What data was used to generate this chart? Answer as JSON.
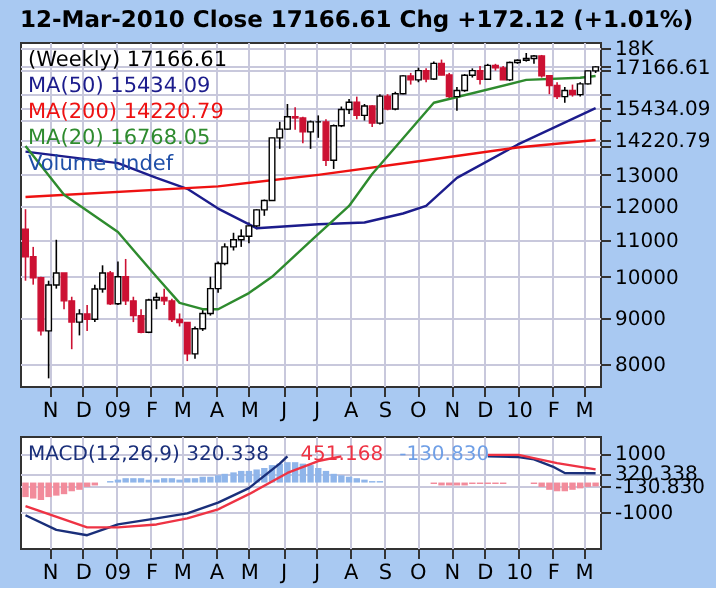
{
  "chart_data": [
    {
      "type": "candlestick",
      "title": "12-Mar-2010  Close 17166.61  Chg +172.12 (+1.01%)",
      "legend_title": "(Weekly) 17166.61",
      "x": [
        "2008-10-10",
        "2008-10-17",
        "2008-10-24",
        "2008-10-31",
        "2008-11-07",
        "2008-11-14",
        "2008-11-21",
        "2008-11-28",
        "2008-12-05",
        "2008-12-12",
        "2008-12-19",
        "2008-12-26",
        "2009-01-02",
        "2009-01-09",
        "2009-01-16",
        "2009-01-23",
        "2009-01-30",
        "2009-02-06",
        "2009-02-13",
        "2009-02-20",
        "2009-02-27",
        "2009-03-06",
        "2009-03-13",
        "2009-03-20",
        "2009-03-27",
        "2009-04-03",
        "2009-04-09",
        "2009-04-17",
        "2009-04-24",
        "2009-05-01",
        "2009-05-08",
        "2009-05-15",
        "2009-05-22",
        "2009-05-29",
        "2009-06-05",
        "2009-06-12",
        "2009-06-19",
        "2009-06-26",
        "2009-07-03",
        "2009-07-10",
        "2009-07-17",
        "2009-07-24",
        "2009-07-31",
        "2009-08-07",
        "2009-08-14",
        "2009-08-21",
        "2009-08-28",
        "2009-09-04",
        "2009-09-11",
        "2009-09-18",
        "2009-09-25",
        "2009-10-02",
        "2009-10-09",
        "2009-10-16",
        "2009-10-23",
        "2009-10-30",
        "2009-11-06",
        "2009-11-13",
        "2009-11-20",
        "2009-11-27",
        "2009-12-04",
        "2009-12-11",
        "2009-12-18",
        "2009-12-24",
        "2009-12-31",
        "2010-01-08",
        "2010-01-15",
        "2010-01-22",
        "2010-01-29",
        "2010-02-05",
        "2010-02-12",
        "2010-02-19",
        "2010-02-26",
        "2010-03-05",
        "2010-03-12"
      ],
      "ohlc": [
        [
          11300,
          11900,
          9900,
          10530
        ],
        [
          10530,
          10800,
          9800,
          9975
        ],
        [
          9975,
          10000,
          8600,
          8700
        ],
        [
          8700,
          9900,
          7700,
          9790
        ],
        [
          9790,
          11000,
          9700,
          10100
        ],
        [
          10100,
          10100,
          9200,
          9400
        ],
        [
          9400,
          9500,
          8300,
          8900
        ],
        [
          8900,
          9200,
          8600,
          9090
        ],
        [
          9090,
          9300,
          8700,
          8965
        ],
        [
          8965,
          9800,
          8900,
          9690
        ],
        [
          9690,
          10300,
          9600,
          10100
        ],
        [
          10100,
          10150,
          9300,
          9330
        ],
        [
          9330,
          10400,
          9300,
          10000
        ],
        [
          10000,
          10470,
          9300,
          9400
        ],
        [
          9400,
          9500,
          8900,
          9050
        ],
        [
          9050,
          9200,
          8650,
          8670
        ],
        [
          8670,
          9450,
          8650,
          9420
        ],
        [
          9420,
          9600,
          9200,
          9480
        ],
        [
          9480,
          9700,
          9300,
          9400
        ],
        [
          9400,
          9450,
          8900,
          8960
        ],
        [
          8960,
          9100,
          8800,
          8890
        ],
        [
          8890,
          8900,
          8050,
          8200
        ],
        [
          8200,
          8800,
          8100,
          8750
        ],
        [
          8750,
          9200,
          8700,
          9100
        ],
        [
          9100,
          10000,
          9050,
          9700
        ],
        [
          9700,
          10400,
          9600,
          10350
        ],
        [
          10350,
          10900,
          10300,
          10800
        ],
        [
          10800,
          11200,
          10700,
          11000
        ],
        [
          11000,
          11300,
          10800,
          11100
        ],
        [
          11100,
          11500,
          10900,
          11400
        ],
        [
          11400,
          11900,
          11300,
          11880
        ],
        [
          11880,
          12200,
          11700,
          12170
        ],
        [
          12170,
          14300,
          12170,
          14300
        ],
        [
          14300,
          14900,
          13900,
          14625
        ],
        [
          14625,
          15600,
          14600,
          15100
        ],
        [
          15100,
          15470,
          14600,
          15050
        ],
        [
          15050,
          15100,
          14100,
          14520
        ],
        [
          14520,
          14950,
          13900,
          14900
        ],
        [
          14900,
          15150,
          14300,
          14900
        ],
        [
          14900,
          15000,
          13300,
          13500
        ],
        [
          13500,
          14800,
          13200,
          14750
        ],
        [
          14750,
          15500,
          14700,
          15380
        ],
        [
          15380,
          15800,
          15200,
          15670
        ],
        [
          15670,
          15900,
          15000,
          15150
        ],
        [
          15150,
          15600,
          14950,
          15520
        ],
        [
          15520,
          15550,
          14700,
          14850
        ],
        [
          14850,
          16000,
          14800,
          15920
        ],
        [
          15920,
          16000,
          15350,
          15400
        ],
        [
          15400,
          16100,
          15350,
          16020
        ],
        [
          16020,
          16800,
          16000,
          16770
        ],
        [
          16770,
          16900,
          16400,
          16600
        ],
        [
          16600,
          17130,
          16500,
          17000
        ],
        [
          17000,
          17100,
          16500,
          16640
        ],
        [
          16640,
          17400,
          16600,
          17320
        ],
        [
          17320,
          17490,
          16800,
          16810
        ],
        [
          16810,
          16900,
          15800,
          15900
        ],
        [
          15900,
          16300,
          15330,
          16150
        ],
        [
          16150,
          16850,
          16100,
          16800
        ],
        [
          16800,
          17100,
          16700,
          17000
        ],
        [
          17000,
          17200,
          16400,
          16630
        ],
        [
          16630,
          17300,
          16600,
          17230
        ],
        [
          17230,
          17300,
          17000,
          17120
        ],
        [
          17120,
          17200,
          16600,
          16600
        ],
        [
          16600,
          17400,
          16550,
          17360
        ],
        [
          17360,
          17500,
          17300,
          17460
        ],
        [
          17460,
          17790,
          17400,
          17540
        ],
        [
          17540,
          17700,
          17300,
          17650
        ],
        [
          17650,
          17700,
          16700,
          16780
        ],
        [
          16780,
          16800,
          16000,
          16360
        ],
        [
          16360,
          16500,
          15800,
          15900
        ],
        [
          15900,
          16300,
          15650,
          16150
        ],
        [
          16150,
          16400,
          15900,
          15980
        ],
        [
          15980,
          16500,
          15900,
          16430
        ],
        [
          16430,
          17000,
          16400,
          16990
        ],
        [
          16990,
          17200,
          16900,
          17166.61
        ]
      ],
      "series": [
        {
          "name": "MA(50) 15434.09",
          "type": "line",
          "color": "#1c1c8c",
          "x": [
            "2008-10-10",
            "2009-01-02",
            "2009-02-06",
            "2009-03-06",
            "2009-04-03",
            "2009-05-08",
            "2009-07-03",
            "2009-08-14",
            "2009-09-18",
            "2009-10-09",
            "2009-11-06",
            "2009-12-31",
            "2010-03-12"
          ],
          "values": [
            13800,
            13400,
            12900,
            12540,
            11920,
            11330,
            11450,
            11500,
            11770,
            12000,
            12900,
            14050,
            15434.09
          ]
        },
        {
          "name": "MA(200) 14220.79",
          "type": "line",
          "color": "#ee1111",
          "x": [
            "2008-10-10",
            "2009-04-03",
            "2009-07-03",
            "2009-10-09",
            "2009-12-31",
            "2010-03-12"
          ],
          "values": [
            12280,
            12620,
            13000,
            13500,
            13950,
            14220.79
          ]
        },
        {
          "name": "MA(20) 16768.05",
          "type": "line",
          "color": "#2e8b2e",
          "x": [
            "2008-10-10",
            "2008-11-14",
            "2009-01-02",
            "2009-02-06",
            "2009-02-27",
            "2009-03-20",
            "2009-04-03",
            "2009-05-01",
            "2009-05-22",
            "2009-06-26",
            "2009-07-31",
            "2009-08-21",
            "2009-10-16",
            "2010-01-08",
            "2010-02-26",
            "2010-03-12"
          ],
          "values": [
            14000,
            12350,
            11220,
            10000,
            9350,
            9200,
            9200,
            9590,
            10000,
            10960,
            12000,
            13030,
            15650,
            16600,
            16690,
            16768.05
          ]
        }
      ],
      "xlim": [
        "2008-10-05",
        "2010-03-16"
      ],
      "xticks": [
        {
          "value": "2008-11-01",
          "label": "N"
        },
        {
          "value": "2008-12-01",
          "label": "D"
        },
        {
          "value": "2009-01-01",
          "label": "09"
        },
        {
          "value": "2009-02-01",
          "label": "F"
        },
        {
          "value": "2009-03-01",
          "label": "M"
        },
        {
          "value": "2009-04-01",
          "label": "A"
        },
        {
          "value": "2009-05-01",
          "label": "M"
        },
        {
          "value": "2009-06-01",
          "label": "J"
        },
        {
          "value": "2009-07-01",
          "label": "J"
        },
        {
          "value": "2009-08-01",
          "label": "A"
        },
        {
          "value": "2009-09-01",
          "label": "S"
        },
        {
          "value": "2009-10-01",
          "label": "O"
        },
        {
          "value": "2009-11-01",
          "label": "N"
        },
        {
          "value": "2009-12-01",
          "label": "D"
        },
        {
          "value": "2010-01-01",
          "label": "10"
        },
        {
          "value": "2010-02-01",
          "label": "F"
        },
        {
          "value": "2010-03-01",
          "label": "M"
        }
      ],
      "ylim": [
        7550,
        18300
      ],
      "log": true,
      "yticks": [
        8000,
        9000,
        10000,
        11000,
        12000,
        13000,
        {
          "value": 14000,
          "label": null
        },
        {
          "value": 14220.79,
          "label": "14220.79"
        },
        {
          "value": 15000,
          "label": null
        },
        {
          "value": 15434.09,
          "label": "15434.09"
        },
        {
          "value": 16000,
          "label": null
        },
        {
          "value": 17000,
          "label": null
        },
        {
          "value": 17166.61,
          "label": "17166.61"
        },
        {
          "value": 18000,
          "label": "18K"
        }
      ],
      "grid": true,
      "legend": "top left",
      "annotations": [
        "Volume undef"
      ]
    },
    {
      "type": "line",
      "x": [
        "2008-10-10",
        "2008-10-17",
        "2008-10-24",
        "2008-10-31",
        "2008-11-07",
        "2008-11-14",
        "2008-11-21",
        "2008-11-28",
        "2008-12-05",
        "2008-12-12",
        "2008-12-19",
        "2008-12-26",
        "2009-01-02",
        "2009-01-09",
        "2009-01-16",
        "2009-01-23",
        "2009-01-30",
        "2009-02-06",
        "2009-02-13",
        "2009-02-20",
        "2009-02-27",
        "2009-03-06",
        "2009-03-13",
        "2009-03-20",
        "2009-03-27",
        "2009-04-03",
        "2009-04-09",
        "2009-04-17",
        "2009-04-24",
        "2009-05-01",
        "2009-05-08",
        "2009-05-15",
        "2009-05-22",
        "2009-05-29",
        "2009-06-05",
        "2009-06-12",
        "2009-06-19",
        "2009-06-26",
        "2009-07-03",
        "2009-07-10",
        "2009-07-17",
        "2009-07-24",
        "2009-07-31",
        "2009-08-07",
        "2009-08-14",
        "2009-08-21",
        "2009-08-28",
        "2009-09-04",
        "2009-09-11",
        "2009-09-18",
        "2009-09-25",
        "2009-10-02",
        "2009-10-09",
        "2009-10-16",
        "2009-10-23",
        "2009-10-30",
        "2009-11-06",
        "2009-11-13",
        "2009-11-20",
        "2009-11-27",
        "2009-12-04",
        "2009-12-11",
        "2009-12-18",
        "2009-12-24",
        "2009-12-31",
        "2010-01-08",
        "2010-01-15",
        "2010-01-22",
        "2010-01-29",
        "2010-02-05",
        "2010-02-12",
        "2010-02-19",
        "2010-02-26",
        "2010-03-05",
        "2010-03-12"
      ],
      "series": [
        {
          "name": "-130.830",
          "type": "bar",
          "color": "#6f9fe6",
          "values": [
            -500,
            -550,
            -600,
            -500,
            -450,
            -400,
            -300,
            -250,
            -150,
            -100,
            0,
            50,
            100,
            150,
            150,
            150,
            100,
            100,
            150,
            150,
            100,
            150,
            150,
            200,
            200,
            250,
            300,
            350,
            400,
            400,
            450,
            500,
            600,
            650,
            700,
            700,
            650,
            600,
            500,
            400,
            300,
            250,
            200,
            150,
            100,
            50,
            50,
            0,
            0,
            0,
            0,
            0,
            0,
            -50,
            -100,
            -100,
            -100,
            -100,
            -50,
            -50,
            -50,
            -50,
            -50,
            0,
            0,
            0,
            -50,
            -150,
            -250,
            -300,
            -300,
            -250,
            -200,
            -150,
            -130.83
          ],
          "colors": [
            "#f28b9b",
            "#f28b9b",
            "#f28b9b",
            "#f28b9b",
            "#f28b9b",
            "#f28b9b",
            "#f28b9b",
            "#f28b9b",
            "#f28b9b",
            "#f28b9b",
            "#8fb5ea",
            "#8fb5ea",
            "#8fb5ea",
            "#8fb5ea",
            "#8fb5ea",
            "#8fb5ea",
            "#8fb5ea",
            "#8fb5ea",
            "#8fb5ea",
            "#8fb5ea",
            "#8fb5ea",
            "#8fb5ea",
            "#8fb5ea",
            "#8fb5ea",
            "#8fb5ea",
            "#8fb5ea",
            "#8fb5ea",
            "#8fb5ea",
            "#8fb5ea",
            "#8fb5ea",
            "#8fb5ea",
            "#8fb5ea",
            "#8fb5ea",
            "#8fb5ea",
            "#8fb5ea",
            "#8fb5ea",
            "#8fb5ea",
            "#8fb5ea",
            "#8fb5ea",
            "#8fb5ea",
            "#8fb5ea",
            "#8fb5ea",
            "#8fb5ea",
            "#8fb5ea",
            "#8fb5ea",
            "#8fb5ea",
            "#8fb5ea",
            "#8fb5ea",
            "#8fb5ea",
            "#8fb5ea",
            "#8fb5ea",
            "#8fb5ea",
            "#8fb5ea",
            "#f28b9b",
            "#f28b9b",
            "#f28b9b",
            "#f28b9b",
            "#f28b9b",
            "#f28b9b",
            "#f28b9b",
            "#f28b9b",
            "#f28b9b",
            "#f28b9b",
            "#8fb5ea",
            "#8fb5ea",
            "#8fb5ea",
            "#f28b9b",
            "#f28b9b",
            "#f28b9b",
            "#f28b9b",
            "#f28b9b",
            "#f28b9b",
            "#f28b9b",
            "#f28b9b",
            "#f28b9b"
          ]
        },
        {
          "name": "MACD(12,26,9) 320.338",
          "type": "line",
          "color": "#1a2f7a",
          "x": [
            "2008-10-10",
            "2008-11-07",
            "2008-12-05",
            "2009-01-02",
            "2009-02-06",
            "2009-03-06",
            "2009-04-03",
            "2009-05-01",
            "2009-05-29",
            "2009-06-05",
            "2009-07-03",
            "2009-12-04",
            "2010-01-01",
            "2010-01-15",
            "2010-02-01",
            "2010-02-12",
            "2010-03-12"
          ],
          "values": [
            -1125,
            -1625,
            -1810,
            -1440,
            -1230,
            -1060,
            -690,
            -190,
            650,
            900,
            null,
            900,
            875,
            800,
            550,
            330,
            320.338
          ]
        },
        {
          "name": "451.168",
          "type": "line",
          "color": "#ee3344",
          "x": [
            "2008-10-10",
            "2008-12-05",
            "2009-01-02",
            "2009-02-06",
            "2009-03-06",
            "2009-04-03",
            "2009-05-01",
            "2009-06-05",
            "2009-07-03",
            "2009-07-24",
            "2009-09-04",
            "2009-12-04",
            "2010-01-01",
            "2010-02-05",
            "2010-03-12"
          ],
          "values": [
            -810,
            -1540,
            -1540,
            -1440,
            -1230,
            -920,
            -400,
            330,
            740,
            900,
            null,
            950,
            950,
            667,
            451.168
          ]
        }
      ],
      "xlim": [
        "2008-10-05",
        "2010-03-16"
      ],
      "xticks": [
        {
          "value": "2008-11-01",
          "label": "N"
        },
        {
          "value": "2008-12-01",
          "label": "D"
        },
        {
          "value": "2009-01-01",
          "label": "09"
        },
        {
          "value": "2009-02-01",
          "label": "F"
        },
        {
          "value": "2009-03-01",
          "label": "M"
        },
        {
          "value": "2009-04-01",
          "label": "A"
        },
        {
          "value": "2009-05-01",
          "label": "M"
        },
        {
          "value": "2009-06-01",
          "label": "J"
        },
        {
          "value": "2009-07-01",
          "label": "J"
        },
        {
          "value": "2009-08-01",
          "label": "A"
        },
        {
          "value": "2009-09-01",
          "label": "S"
        },
        {
          "value": "2009-10-01",
          "label": "O"
        },
        {
          "value": "2009-11-01",
          "label": "N"
        },
        {
          "value": "2009-12-01",
          "label": "D"
        },
        {
          "value": "2010-01-01",
          "label": "10"
        },
        {
          "value": "2010-02-01",
          "label": "F"
        },
        {
          "value": "2010-03-01",
          "label": "M"
        }
      ],
      "ylim": [
        -2250,
        1600
      ],
      "yticks": [
        -1000,
        {
          "value": -130.83,
          "label": "-130.830"
        },
        {
          "value": 320.338,
          "label": "320.338"
        },
        1000
      ],
      "grid": true,
      "legend": "top left"
    }
  ]
}
